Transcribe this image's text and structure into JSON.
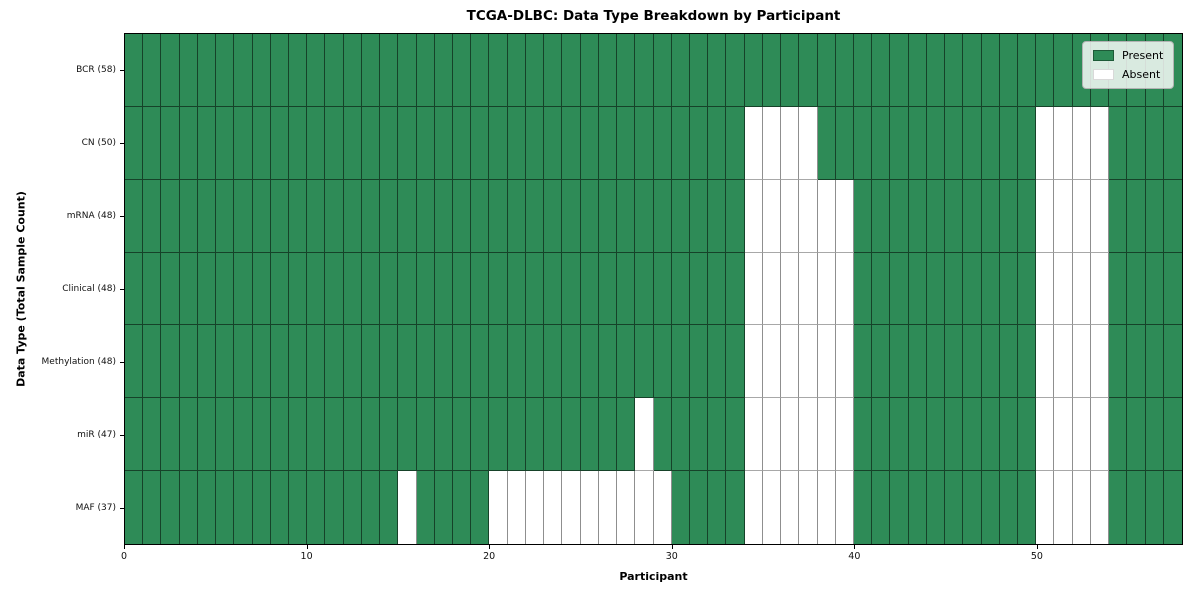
{
  "chart_data": {
    "type": "heatmap",
    "title": "TCGA-DLBC: Data Type Breakdown by Participant",
    "xlabel": "Participant",
    "ylabel": "Data Type (Total Sample Count)",
    "n_participants": 58,
    "x_range": [
      0,
      58
    ],
    "x_ticks": [
      0,
      10,
      20,
      30,
      40,
      50
    ],
    "grid": true,
    "legend_position": "upper right",
    "legend": [
      {
        "label": "Present",
        "value": "present"
      },
      {
        "label": "Absent",
        "value": "absent"
      }
    ],
    "colors": {
      "present": "#2e8b57",
      "absent": "#ffffff",
      "plot_border": "#000000"
    },
    "rows": [
      {
        "label": "BCR (58)",
        "data_type": "BCR",
        "total_samples": 58,
        "absent_participants": []
      },
      {
        "label": "CN (50)",
        "data_type": "CN",
        "total_samples": 50,
        "absent_participants": [
          34,
          35,
          36,
          37,
          50,
          51,
          52,
          53
        ]
      },
      {
        "label": "mRNA (48)",
        "data_type": "mRNA",
        "total_samples": 48,
        "absent_participants": [
          34,
          35,
          36,
          37,
          38,
          39,
          50,
          51,
          52,
          53
        ]
      },
      {
        "label": "Clinical (48)",
        "data_type": "Clinical",
        "total_samples": 48,
        "absent_participants": [
          34,
          35,
          36,
          37,
          38,
          39,
          50,
          51,
          52,
          53
        ]
      },
      {
        "label": "Methylation (48)",
        "data_type": "Methylation",
        "total_samples": 48,
        "absent_participants": [
          34,
          35,
          36,
          37,
          38,
          39,
          50,
          51,
          52,
          53
        ]
      },
      {
        "label": "miR (47)",
        "data_type": "miR",
        "total_samples": 47,
        "absent_participants": [
          28,
          34,
          35,
          36,
          37,
          38,
          39,
          50,
          51,
          52,
          53
        ]
      },
      {
        "label": "MAF (37)",
        "data_type": "MAF",
        "total_samples": 37,
        "absent_participants": [
          15,
          20,
          21,
          22,
          23,
          24,
          25,
          26,
          27,
          28,
          29,
          34,
          35,
          36,
          37,
          38,
          39,
          50,
          51,
          52,
          53
        ]
      }
    ]
  }
}
